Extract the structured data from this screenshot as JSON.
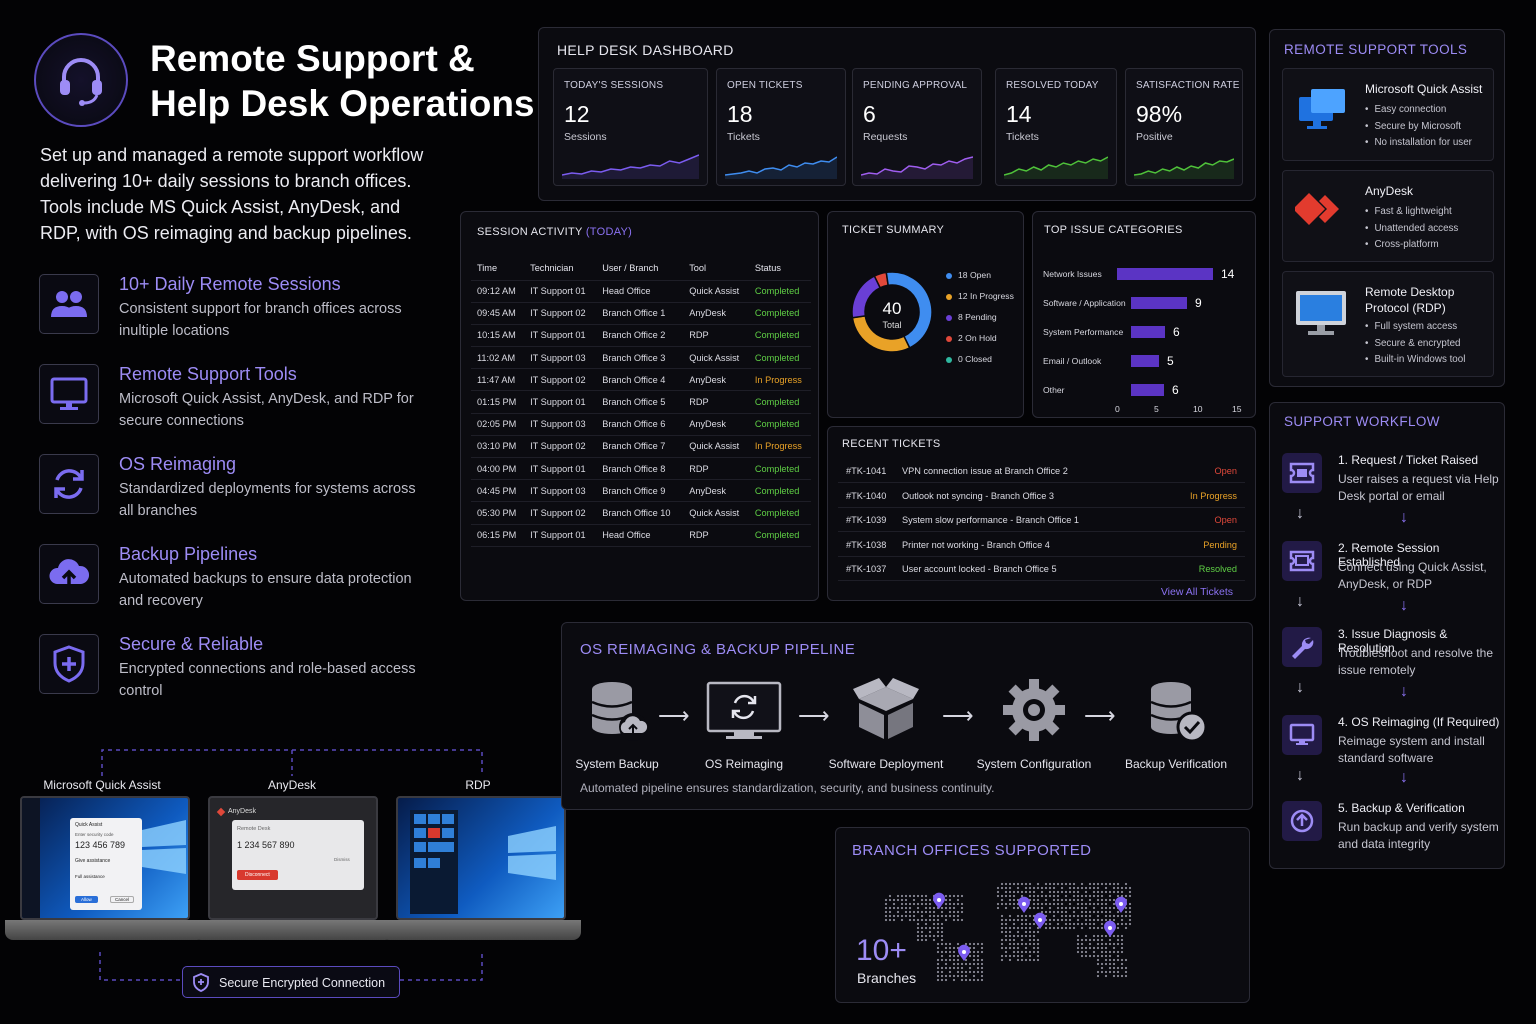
{
  "header": {
    "title_line1": "Remote Support &",
    "title_line2": "Help Desk Operations",
    "intro": "Set up and managed a remote support workflow delivering 10+ daily sessions to branch offices. Tools include MS Quick Assist, AnyDesk, and RDP, with OS reimaging and backup pipelines.",
    "icon": "headset-icon"
  },
  "features": [
    {
      "title": "10+ Daily Remote Sessions",
      "desc": "Consistent support for branch offices across inultiple locations",
      "icon": "users-icon"
    },
    {
      "title": "Remote Support Tools",
      "desc": "Microsoft Quick Assist, AnyDesk, and RDP for secure connections",
      "icon": "monitor-icon"
    },
    {
      "title": "OS Reimaging",
      "desc": "Standardized deployments for systems across all branches",
      "icon": "refresh-icon"
    },
    {
      "title": "Backup Pipelines",
      "desc": "Automated backups to ensure data protection and recovery",
      "icon": "cloud-upload-icon"
    },
    {
      "title": "Secure & Reliable",
      "desc": "Encrypted connections and role-based access control",
      "icon": "shield-icon"
    }
  ],
  "laptops": {
    "labels": [
      "Microsoft Quick Assist",
      "AnyDesk",
      "RDP"
    ],
    "quick_assist": {
      "brand": "Quick Assist",
      "prompt": "Enter security code",
      "code": "123 456 789",
      "opt1": "Give assistance",
      "opt2": "Full assistance",
      "ok": "Allow",
      "cancel": "Cancel"
    },
    "anydesk": {
      "brand": "AnyDesk",
      "label": "Remote Desk",
      "code": "1 234 567 890",
      "btn": "Disconnect",
      "btn2": "Dismiss"
    },
    "connection": "Secure Encrypted Connection"
  },
  "dashboard": {
    "title": "HELP DESK DASHBOARD",
    "kpis": [
      {
        "label": "TODAY'S SESSIONS",
        "value": "12",
        "sub": "Sessions",
        "color": "#7b5cf0"
      },
      {
        "label": "OPEN TICKETS",
        "value": "18",
        "sub": "Tickets",
        "color": "#3f8df0"
      },
      {
        "label": "PENDING APPROVAL",
        "value": "6",
        "sub": "Requests",
        "color": "#a05ef0"
      },
      {
        "label": "RESOLVED TODAY",
        "value": "14",
        "sub": "Tickets",
        "color": "#4fc23a"
      },
      {
        "label": "SATISFACTION RATE",
        "value": "98%",
        "sub": "Positive",
        "color": "#4fc23a"
      }
    ]
  },
  "session_activity": {
    "title": "SESSION ACTIVITY",
    "title_tag": "(TODAY)",
    "columns": [
      "Time",
      "Technician",
      "User / Branch",
      "Tool",
      "Status"
    ],
    "rows": [
      [
        "09:12 AM",
        "IT Support 01",
        "Head Office",
        "Quick Assist",
        "Completed"
      ],
      [
        "09:45 AM",
        "IT Support 02",
        "Branch Office 1",
        "AnyDesk",
        "Completed"
      ],
      [
        "10:15 AM",
        "IT Support 01",
        "Branch Office 2",
        "RDP",
        "Completed"
      ],
      [
        "11:02 AM",
        "IT Support 03",
        "Branch Office 3",
        "Quick Assist",
        "Completed"
      ],
      [
        "11:47 AM",
        "IT Support 02",
        "Branch Office 4",
        "AnyDesk",
        "In Progress"
      ],
      [
        "01:15 PM",
        "IT Support 01",
        "Branch Office 5",
        "RDP",
        "Completed"
      ],
      [
        "02:05 PM",
        "IT Support 03",
        "Branch Office 6",
        "AnyDesk",
        "Completed"
      ],
      [
        "03:10 PM",
        "IT Support 02",
        "Branch Office 7",
        "Quick Assist",
        "In Progress"
      ],
      [
        "04:00 PM",
        "IT Support 01",
        "Branch Office 8",
        "RDP",
        "Completed"
      ],
      [
        "04:45 PM",
        "IT Support 03",
        "Branch Office 9",
        "AnyDesk",
        "Completed"
      ],
      [
        "05:30 PM",
        "IT Support 02",
        "Branch Office 10",
        "Quick Assist",
        "Completed"
      ],
      [
        "06:15 PM",
        "IT Support 01",
        "Head Office",
        "RDP",
        "Completed"
      ]
    ]
  },
  "ticket_summary": {
    "title": "TICKET SUMMARY",
    "total": "40",
    "total_label": "Total",
    "items": [
      {
        "label": "18 Open",
        "value": 18,
        "color": "#3f8df0"
      },
      {
        "label": "12 In Progress",
        "value": 12,
        "color": "#e9a227"
      },
      {
        "label": "8 Pending",
        "value": 8,
        "color": "#6a3fd6"
      },
      {
        "label": "2 On Hold",
        "value": 2,
        "color": "#e0483a"
      },
      {
        "label": "0 Closed",
        "value": 0,
        "color": "#2fb8a0"
      }
    ]
  },
  "top_issues": {
    "title": "TOP ISSUE CATEGORIES",
    "bars": [
      {
        "label": "Network Issues",
        "value": 14
      },
      {
        "label": "Software / Application",
        "value": 9
      },
      {
        "label": "System Performance",
        "value": 6
      },
      {
        "label": "Email / Outlook",
        "value": 5
      },
      {
        "label": "Other",
        "value": 6
      }
    ],
    "ticks": [
      "0",
      "5",
      "10",
      "15"
    ],
    "xmax": 15
  },
  "recent_tickets": {
    "title": "RECENT TICKETS",
    "rows": [
      {
        "id": "#TK-1041",
        "desc": "VPN connection issue at Branch Office 2",
        "status": "Open",
        "color": "#e0483a"
      },
      {
        "id": "#TK-1040",
        "desc": "Outlook not syncing - Branch Office 3",
        "status": "In Progress",
        "color": "#e9a227"
      },
      {
        "id": "#TK-1039",
        "desc": "System slow performance - Branch Office 1",
        "status": "Open",
        "color": "#e0483a"
      },
      {
        "id": "#TK-1038",
        "desc": "Printer not working - Branch Office 4",
        "status": "Pending",
        "color": "#e9a227"
      },
      {
        "id": "#TK-1037",
        "desc": "User account locked - Branch Office 5",
        "status": "Resolved",
        "color": "#5fcf45"
      }
    ],
    "view_all": "View All Tickets"
  },
  "pipeline": {
    "title": "OS REIMAGING & BACKUP PIPELINE",
    "steps": [
      {
        "label": "System Backup",
        "icon": "database-upload-icon"
      },
      {
        "label": "OS Reimaging",
        "icon": "monitor-refresh-icon"
      },
      {
        "label": "Software Deployment",
        "icon": "package-icon"
      },
      {
        "label": "System Configuration",
        "icon": "gear-icon"
      },
      {
        "label": "Backup Verification",
        "icon": "database-check-icon"
      }
    ],
    "note": "Automated pipeline ensures standardization, security, and business continuity."
  },
  "branches": {
    "title": "BRANCH OFFICES SUPPORTED",
    "count": "10+",
    "count_label": "Branches"
  },
  "tools": {
    "title": "REMOTE SUPPORT TOOLS",
    "items": [
      {
        "name": "Microsoft Quick Assist",
        "bullets": [
          "Easy connection",
          "Secure by Microsoft",
          "No installation for user"
        ],
        "icon": "quick-assist-icon"
      },
      {
        "name": "AnyDesk",
        "bullets": [
          "Fast & lightweight",
          "Unattended access",
          "Cross-platform"
        ],
        "icon": "anydesk-icon"
      },
      {
        "name": "Remote Desktop Protocol (RDP)",
        "bullets": [
          "Full system access",
          "Secure & encrypted",
          "Built-in Windows tool"
        ],
        "icon": "rdp-monitor-icon"
      }
    ]
  },
  "workflow": {
    "title": "SUPPORT WORKFLOW",
    "steps": [
      {
        "title": "1. Request / Ticket Raised",
        "desc": "User raises a request via Help Desk portal or email",
        "icon": "ticket-icon"
      },
      {
        "title": "2. Remote Session Established",
        "desc": "Connect using Quick Assist, AnyDesk, or RDP",
        "icon": "remote-session-icon"
      },
      {
        "title": "3. Issue Diagnosis & Resolution",
        "desc": "Troubleshoot and resolve the issue remotely",
        "icon": "wrench-icon"
      },
      {
        "title": "4. OS Reimaging (If Required)",
        "desc": "Reimage system and install standard software",
        "icon": "monitor-icon"
      },
      {
        "title": "5. Backup & Verification",
        "desc": "Run backup and verify system and data integrity",
        "icon": "upload-circle-icon"
      }
    ]
  }
}
